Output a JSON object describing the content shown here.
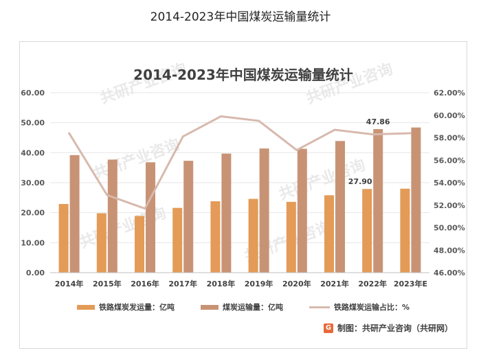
{
  "page": {
    "title": "2014-2023年中国煤炭运输量统计"
  },
  "chart_data": {
    "type": "bar",
    "title": "2014-2023年中国煤炭运输量统计",
    "categories": [
      "2014年",
      "2015年",
      "2016年",
      "2017年",
      "2018年",
      "2019年",
      "2020年",
      "2021年",
      "2022年",
      "2023年E"
    ],
    "series": [
      {
        "name": "铁路煤炭发运量：亿吨",
        "type": "bar",
        "color": "#e39b57",
        "axis": "left",
        "values": [
          22.9,
          19.8,
          18.9,
          21.6,
          23.8,
          24.6,
          23.6,
          25.8,
          27.9,
          28.0
        ]
      },
      {
        "name": "煤炭运输量：亿吨",
        "type": "bar",
        "color": "#c89375",
        "axis": "left",
        "values": [
          39.2,
          37.7,
          36.8,
          37.3,
          39.7,
          41.4,
          41.3,
          43.9,
          47.86,
          48.4
        ]
      },
      {
        "name": "铁路煤炭运输占比：%",
        "type": "line",
        "color": "#d7b9ad",
        "axis": "right",
        "values": [
          58.4,
          52.9,
          51.7,
          58.1,
          59.9,
          59.5,
          56.9,
          58.7,
          58.3,
          58.4
        ]
      }
    ],
    "data_labels": [
      {
        "series": 0,
        "index": 8,
        "text": "27.90"
      },
      {
        "series": 1,
        "index": 8,
        "text": "47.86"
      }
    ],
    "y_left": {
      "ylim": [
        0,
        60
      ],
      "ticks": [
        "0.00",
        "10.00",
        "20.00",
        "30.00",
        "40.00",
        "50.00",
        "60.00"
      ]
    },
    "y_right": {
      "ylim": [
        46,
        62
      ],
      "ticks": [
        "46.00%",
        "48.00%",
        "50.00%",
        "52.00%",
        "54.00%",
        "56.00%",
        "58.00%",
        "60.00%",
        "62.00%"
      ]
    },
    "grid": true,
    "legend_position": "bottom"
  },
  "legend": {
    "item1": "铁路煤炭发运量：亿吨",
    "item2": "煤炭运输量：亿吨",
    "item3": "铁路煤炭运输占比：%"
  },
  "source": {
    "label": "制图：共研产业咨询（共研网）",
    "logo": "G"
  },
  "watermark": {
    "text": "共研产业咨询"
  }
}
